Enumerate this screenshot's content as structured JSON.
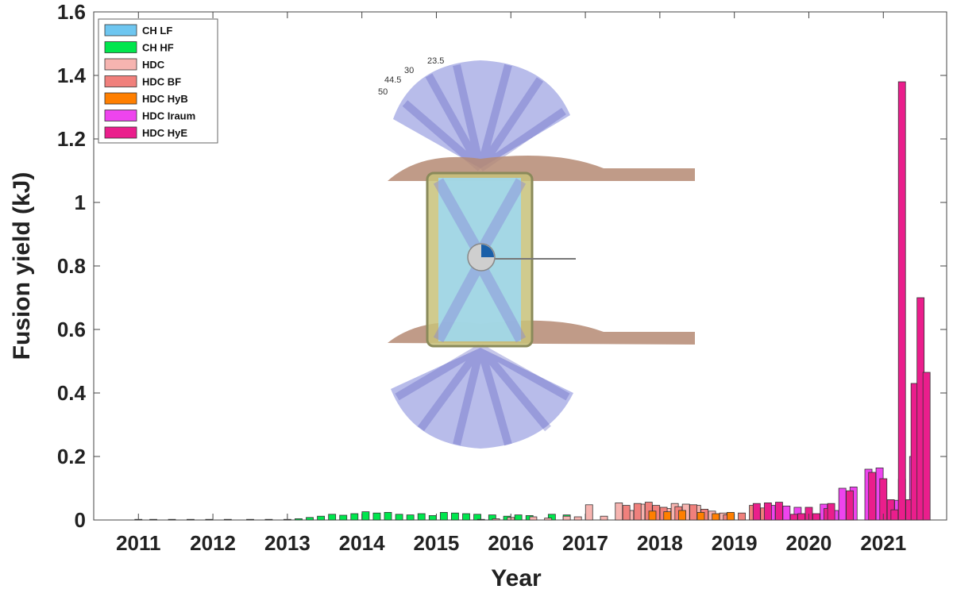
{
  "chart_data": {
    "type": "bar",
    "title": "",
    "xlabel": "Year",
    "ylabel": "Fusion yield (kJ)",
    "ylim": [
      0,
      1.6
    ],
    "xlim": [
      2010.4,
      2021.85
    ],
    "grid": false,
    "legend_placement": "top-left",
    "x_ticks": [
      "2011",
      "2012",
      "2013",
      "2014",
      "2015",
      "2016",
      "2017",
      "2018",
      "2019",
      "2020",
      "2021"
    ],
    "y_ticks": [
      "0",
      "0.2",
      "0.4",
      "0.6",
      "0.8",
      "1",
      "1.2",
      "1.4",
      "1.6"
    ],
    "series": [
      {
        "name": "CH LF",
        "color": "#6ec6f0",
        "points": [
          [
            2011.0,
            0.001
          ],
          [
            2011.2,
            0.001
          ],
          [
            2011.45,
            0.001
          ],
          [
            2011.7,
            0.002
          ],
          [
            2011.95,
            0.001
          ],
          [
            2012.2,
            0.002
          ],
          [
            2012.5,
            0.001
          ],
          [
            2012.75,
            0.001
          ]
        ]
      },
      {
        "name": "CH HF",
        "color": "#00e64d",
        "points": [
          [
            2013.0,
            0.002
          ],
          [
            2013.15,
            0.004
          ],
          [
            2013.3,
            0.008
          ],
          [
            2013.45,
            0.012
          ],
          [
            2013.6,
            0.018
          ],
          [
            2013.75,
            0.015
          ],
          [
            2013.9,
            0.02
          ],
          [
            2014.05,
            0.026
          ],
          [
            2014.2,
            0.022
          ],
          [
            2014.35,
            0.024
          ],
          [
            2014.5,
            0.018
          ],
          [
            2014.65,
            0.016
          ],
          [
            2014.8,
            0.02
          ],
          [
            2014.95,
            0.014
          ],
          [
            2015.1,
            0.024
          ],
          [
            2015.25,
            0.022
          ],
          [
            2015.4,
            0.02
          ],
          [
            2015.55,
            0.018
          ],
          [
            2015.75,
            0.016
          ],
          [
            2015.95,
            0.012
          ],
          [
            2016.1,
            0.016
          ],
          [
            2016.25,
            0.014
          ],
          [
            2016.55,
            0.018
          ],
          [
            2016.75,
            0.016
          ]
        ]
      },
      {
        "name": "HDC",
        "color": "#f6b4b0",
        "points": [
          [
            2015.6,
            0.002
          ],
          [
            2015.8,
            0.004
          ],
          [
            2016.0,
            0.008
          ],
          [
            2016.3,
            0.01
          ],
          [
            2016.5,
            0.006
          ],
          [
            2016.75,
            0.012
          ],
          [
            2016.9,
            0.01
          ],
          [
            2017.05,
            0.048
          ],
          [
            2017.25,
            0.012
          ],
          [
            2017.45,
            0.054
          ],
          [
            2017.6,
            0.03
          ],
          [
            2017.75,
            0.05
          ],
          [
            2017.9,
            0.044
          ],
          [
            2018.1,
            0.036
          ],
          [
            2018.2,
            0.052
          ],
          [
            2018.35,
            0.05
          ],
          [
            2018.5,
            0.046
          ],
          [
            2018.7,
            0.028
          ],
          [
            2018.85,
            0.022
          ]
        ]
      },
      {
        "name": "HDC BF",
        "color": "#f0807c",
        "points": [
          [
            2017.55,
            0.046
          ],
          [
            2017.7,
            0.052
          ],
          [
            2017.85,
            0.056
          ],
          [
            2017.95,
            0.046
          ],
          [
            2018.05,
            0.04
          ],
          [
            2018.25,
            0.042
          ],
          [
            2018.45,
            0.048
          ],
          [
            2018.6,
            0.034
          ],
          [
            2018.9,
            0.016
          ],
          [
            2019.1,
            0.022
          ],
          [
            2019.25,
            0.046
          ],
          [
            2019.4,
            0.038
          ]
        ]
      },
      {
        "name": "HDC HyB",
        "color": "#ff7f00",
        "points": [
          [
            2017.9,
            0.028
          ],
          [
            2018.1,
            0.026
          ],
          [
            2018.3,
            0.03
          ],
          [
            2018.55,
            0.024
          ],
          [
            2018.75,
            0.02
          ],
          [
            2018.95,
            0.024
          ]
        ]
      },
      {
        "name": "HDC Iraum",
        "color": "#ee44ee",
        "points": [
          [
            2019.5,
            0.046
          ],
          [
            2019.7,
            0.044
          ],
          [
            2019.85,
            0.04
          ],
          [
            2020.05,
            0.016
          ],
          [
            2020.2,
            0.05
          ],
          [
            2020.35,
            0.03
          ],
          [
            2020.45,
            0.1
          ],
          [
            2020.6,
            0.104
          ],
          [
            2020.8,
            0.16
          ],
          [
            2020.95,
            0.164
          ],
          [
            2021.05,
            0.06
          ],
          [
            2021.2,
            0.062
          ],
          [
            2021.4,
            0.2
          ]
        ]
      },
      {
        "name": "HDC HyE",
        "color": "#ea1e8c",
        "points": [
          [
            2019.3,
            0.052
          ],
          [
            2019.45,
            0.054
          ],
          [
            2019.6,
            0.056
          ],
          [
            2019.8,
            0.018
          ],
          [
            2019.9,
            0.02
          ],
          [
            2020.0,
            0.04
          ],
          [
            2020.1,
            0.02
          ],
          [
            2020.25,
            0.036
          ],
          [
            2020.3,
            0.052
          ],
          [
            2020.55,
            0.092
          ],
          [
            2020.85,
            0.15
          ],
          [
            2021.0,
            0.13
          ],
          [
            2021.1,
            0.064
          ],
          [
            2021.15,
            0.032
          ],
          [
            2021.25,
            0.128
          ],
          [
            2021.35,
            0.064
          ],
          [
            2021.42,
            0.43
          ],
          [
            2021.25,
            1.38
          ],
          [
            2021.5,
            0.7
          ],
          [
            2021.58,
            0.465
          ]
        ]
      }
    ],
    "inset": {
      "labels": [
        "23.5",
        "30",
        "44.5",
        "50"
      ]
    }
  }
}
